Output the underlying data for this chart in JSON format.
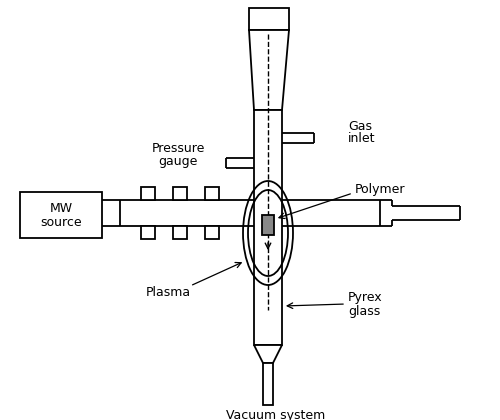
{
  "bg_color": "#ffffff",
  "line_color": "#000000",
  "gray_fill": "#888888",
  "labels": {
    "mw_source": [
      "MW",
      "source"
    ],
    "pressure_gauge": [
      "Pressure",
      "gauge"
    ],
    "gas_inlet": [
      "Gas",
      "inlet"
    ],
    "polymer": "Polymer",
    "plasma": "Plasma",
    "pyrex_glass": [
      "Pyrex",
      "glass"
    ],
    "vacuum": "Vacuum system"
  },
  "figsize": [
    5.0,
    4.2
  ],
  "dpi": 100
}
